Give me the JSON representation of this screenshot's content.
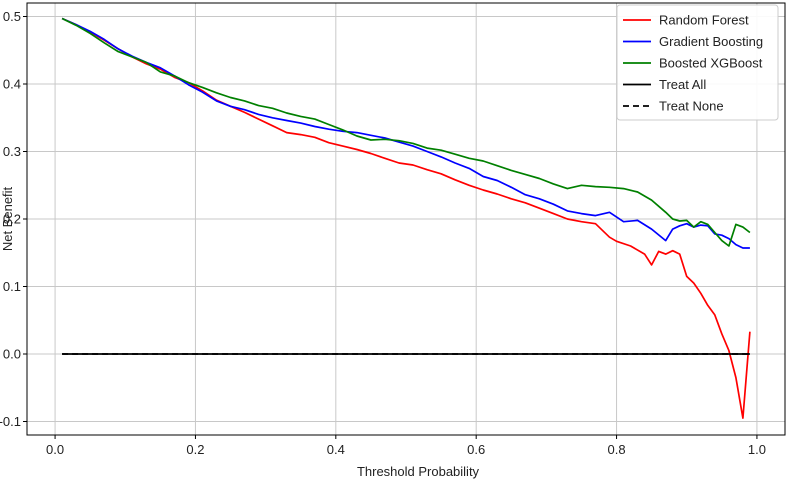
{
  "chart_data": {
    "type": "line",
    "title": "",
    "xlabel": "Threshold Probability",
    "ylabel": "Net Benefit",
    "xlim": [
      -0.04,
      1.04
    ],
    "ylim": [
      -0.12,
      0.52
    ],
    "xticks": [
      0.0,
      0.2,
      0.4,
      0.6,
      0.8,
      1.0
    ],
    "xtick_labels": [
      "0.0",
      "0.2",
      "0.4",
      "0.6",
      "0.8",
      "1.0"
    ],
    "yticks": [
      -0.1,
      0.0,
      0.1,
      0.2,
      0.3,
      0.4,
      0.5
    ],
    "ytick_labels": [
      "-0.1",
      "0.0",
      "0.1",
      "0.2",
      "0.3",
      "0.4",
      "0.5"
    ],
    "grid": true,
    "legend_position": "upper-right",
    "series": [
      {
        "name": "Random Forest",
        "color": "#ff0000",
        "style": "solid",
        "x": [
          0.01,
          0.03,
          0.05,
          0.07,
          0.09,
          0.11,
          0.13,
          0.15,
          0.17,
          0.19,
          0.21,
          0.23,
          0.25,
          0.27,
          0.29,
          0.31,
          0.33,
          0.35,
          0.37,
          0.39,
          0.41,
          0.43,
          0.45,
          0.47,
          0.49,
          0.51,
          0.53,
          0.55,
          0.57,
          0.59,
          0.61,
          0.63,
          0.65,
          0.67,
          0.69,
          0.71,
          0.73,
          0.75,
          0.77,
          0.79,
          0.8,
          0.82,
          0.84,
          0.85,
          0.86,
          0.87,
          0.88,
          0.89,
          0.9,
          0.91,
          0.92,
          0.93,
          0.94,
          0.95,
          0.96,
          0.97,
          0.98,
          0.99
        ],
        "y": [
          0.497,
          0.488,
          0.477,
          0.465,
          0.452,
          0.44,
          0.43,
          0.422,
          0.41,
          0.402,
          0.39,
          0.376,
          0.367,
          0.358,
          0.348,
          0.338,
          0.328,
          0.325,
          0.321,
          0.313,
          0.308,
          0.303,
          0.297,
          0.29,
          0.283,
          0.28,
          0.273,
          0.267,
          0.258,
          0.25,
          0.243,
          0.237,
          0.23,
          0.224,
          0.216,
          0.208,
          0.2,
          0.196,
          0.193,
          0.173,
          0.167,
          0.16,
          0.148,
          0.132,
          0.152,
          0.148,
          0.153,
          0.148,
          0.115,
          0.105,
          0.09,
          0.072,
          0.058,
          0.03,
          0.005,
          -0.035,
          -0.095,
          0.033
        ]
      },
      {
        "name": "Gradient Boosting",
        "color": "#0000ff",
        "style": "solid",
        "x": [
          0.01,
          0.03,
          0.05,
          0.07,
          0.09,
          0.11,
          0.13,
          0.15,
          0.17,
          0.19,
          0.21,
          0.23,
          0.25,
          0.27,
          0.29,
          0.31,
          0.33,
          0.35,
          0.37,
          0.39,
          0.41,
          0.43,
          0.45,
          0.47,
          0.49,
          0.51,
          0.53,
          0.55,
          0.57,
          0.59,
          0.61,
          0.63,
          0.65,
          0.67,
          0.69,
          0.71,
          0.73,
          0.75,
          0.77,
          0.79,
          0.81,
          0.83,
          0.85,
          0.87,
          0.88,
          0.89,
          0.9,
          0.91,
          0.92,
          0.93,
          0.94,
          0.95,
          0.96,
          0.97,
          0.98,
          0.99
        ],
        "y": [
          0.497,
          0.488,
          0.478,
          0.466,
          0.452,
          0.441,
          0.432,
          0.424,
          0.412,
          0.399,
          0.388,
          0.375,
          0.367,
          0.362,
          0.355,
          0.35,
          0.346,
          0.342,
          0.337,
          0.333,
          0.33,
          0.328,
          0.324,
          0.32,
          0.314,
          0.308,
          0.3,
          0.292,
          0.283,
          0.275,
          0.263,
          0.257,
          0.247,
          0.236,
          0.23,
          0.222,
          0.212,
          0.208,
          0.205,
          0.21,
          0.196,
          0.198,
          0.185,
          0.168,
          0.185,
          0.19,
          0.193,
          0.188,
          0.191,
          0.19,
          0.178,
          0.176,
          0.171,
          0.162,
          0.157,
          0.157
        ]
      },
      {
        "name": "Boosted XGBoost",
        "color": "#008000",
        "style": "solid",
        "x": [
          0.01,
          0.03,
          0.05,
          0.07,
          0.09,
          0.11,
          0.13,
          0.15,
          0.17,
          0.19,
          0.21,
          0.23,
          0.25,
          0.27,
          0.29,
          0.31,
          0.33,
          0.35,
          0.37,
          0.39,
          0.41,
          0.43,
          0.45,
          0.47,
          0.49,
          0.51,
          0.53,
          0.55,
          0.57,
          0.59,
          0.61,
          0.63,
          0.65,
          0.67,
          0.69,
          0.71,
          0.73,
          0.75,
          0.77,
          0.79,
          0.81,
          0.83,
          0.85,
          0.87,
          0.88,
          0.89,
          0.9,
          0.91,
          0.92,
          0.93,
          0.94,
          0.95,
          0.96,
          0.97,
          0.98,
          0.99
        ],
        "y": [
          0.497,
          0.487,
          0.475,
          0.461,
          0.448,
          0.44,
          0.432,
          0.418,
          0.412,
          0.402,
          0.395,
          0.387,
          0.38,
          0.375,
          0.368,
          0.364,
          0.357,
          0.352,
          0.348,
          0.34,
          0.332,
          0.323,
          0.317,
          0.318,
          0.316,
          0.312,
          0.305,
          0.302,
          0.296,
          0.29,
          0.286,
          0.279,
          0.272,
          0.266,
          0.26,
          0.252,
          0.245,
          0.25,
          0.248,
          0.247,
          0.245,
          0.24,
          0.228,
          0.21,
          0.2,
          0.197,
          0.198,
          0.188,
          0.196,
          0.192,
          0.18,
          0.168,
          0.16,
          0.192,
          0.188,
          0.18
        ]
      },
      {
        "name": "Treat All",
        "color": "#000000",
        "style": "solid",
        "x": [
          0.01,
          0.99
        ],
        "y": [
          0.0,
          0.0
        ]
      },
      {
        "name": "Treat None",
        "color": "#000000",
        "style": "dashed",
        "x": [
          0.01,
          0.99
        ],
        "y": [
          0.0,
          0.0
        ]
      }
    ]
  }
}
